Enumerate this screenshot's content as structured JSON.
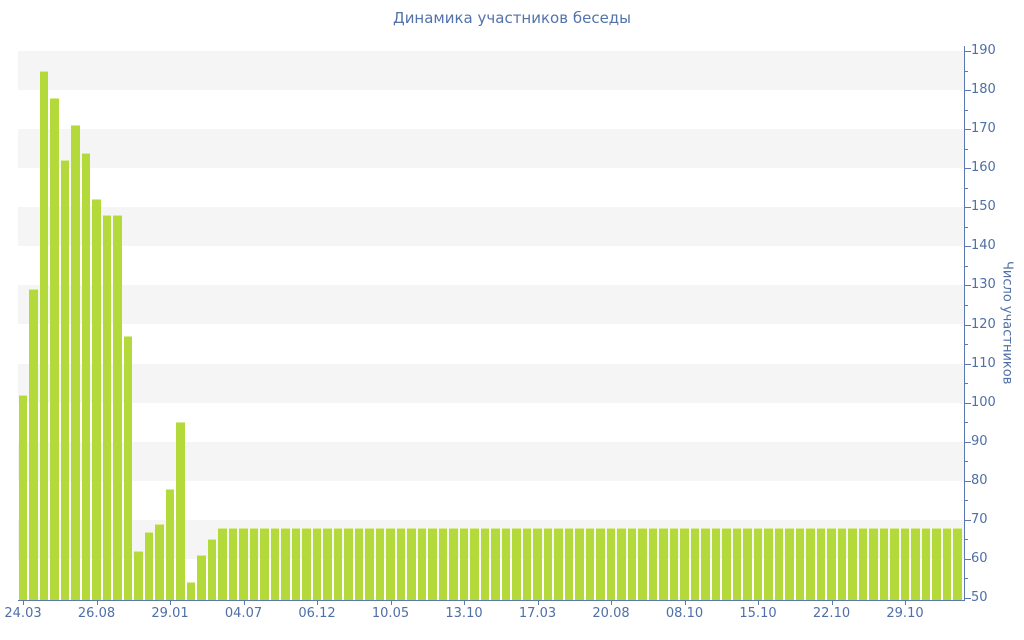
{
  "header": {
    "title": "Динамика участников беседы"
  },
  "chart_data": {
    "type": "bar",
    "title": "Динамика участников беседы",
    "xlabel": "",
    "ylabel": "Число участников",
    "ylim": [
      50,
      190
    ],
    "y_ticks": [
      50,
      60,
      70,
      80,
      90,
      100,
      110,
      120,
      130,
      140,
      150,
      160,
      170,
      180,
      190
    ],
    "y_minor_tick_step": 5,
    "x_tick_labels": [
      "24.03",
      "26.08",
      "29.01",
      "04.07",
      "06.12",
      "10.05",
      "13.10",
      "17.03",
      "20.08",
      "08.10",
      "15.10",
      "22.10",
      "29.10"
    ],
    "x_label_interval": 7,
    "legend_position": "none",
    "grid": "alternating-horizontal-bands",
    "values": [
      102,
      129,
      185,
      178,
      162,
      171,
      164,
      152,
      148,
      148,
      117,
      62,
      67,
      69,
      78,
      95,
      54,
      61,
      65,
      68,
      68,
      68,
      68,
      68,
      68,
      68,
      68,
      68,
      68,
      68,
      68,
      68,
      68,
      68,
      68,
      68,
      68,
      68,
      68,
      68,
      68,
      68,
      68,
      68,
      68,
      68,
      68,
      68,
      68,
      68,
      68,
      68,
      68,
      68,
      68,
      68,
      68,
      68,
      68,
      68,
      68,
      68,
      68,
      68,
      68,
      68,
      68,
      68,
      68,
      68,
      68,
      68,
      68,
      68,
      68,
      68,
      68,
      68,
      68,
      68,
      68,
      68,
      68,
      68,
      68,
      68,
      68,
      68,
      68,
      68
    ],
    "colors": {
      "bar": "#b4d93b",
      "bar_edge": "#d9eb93",
      "band": "#f5f5f5",
      "axis": "#5b79ae",
      "text": "#4f6fa6",
      "background": "#ffffff"
    }
  }
}
